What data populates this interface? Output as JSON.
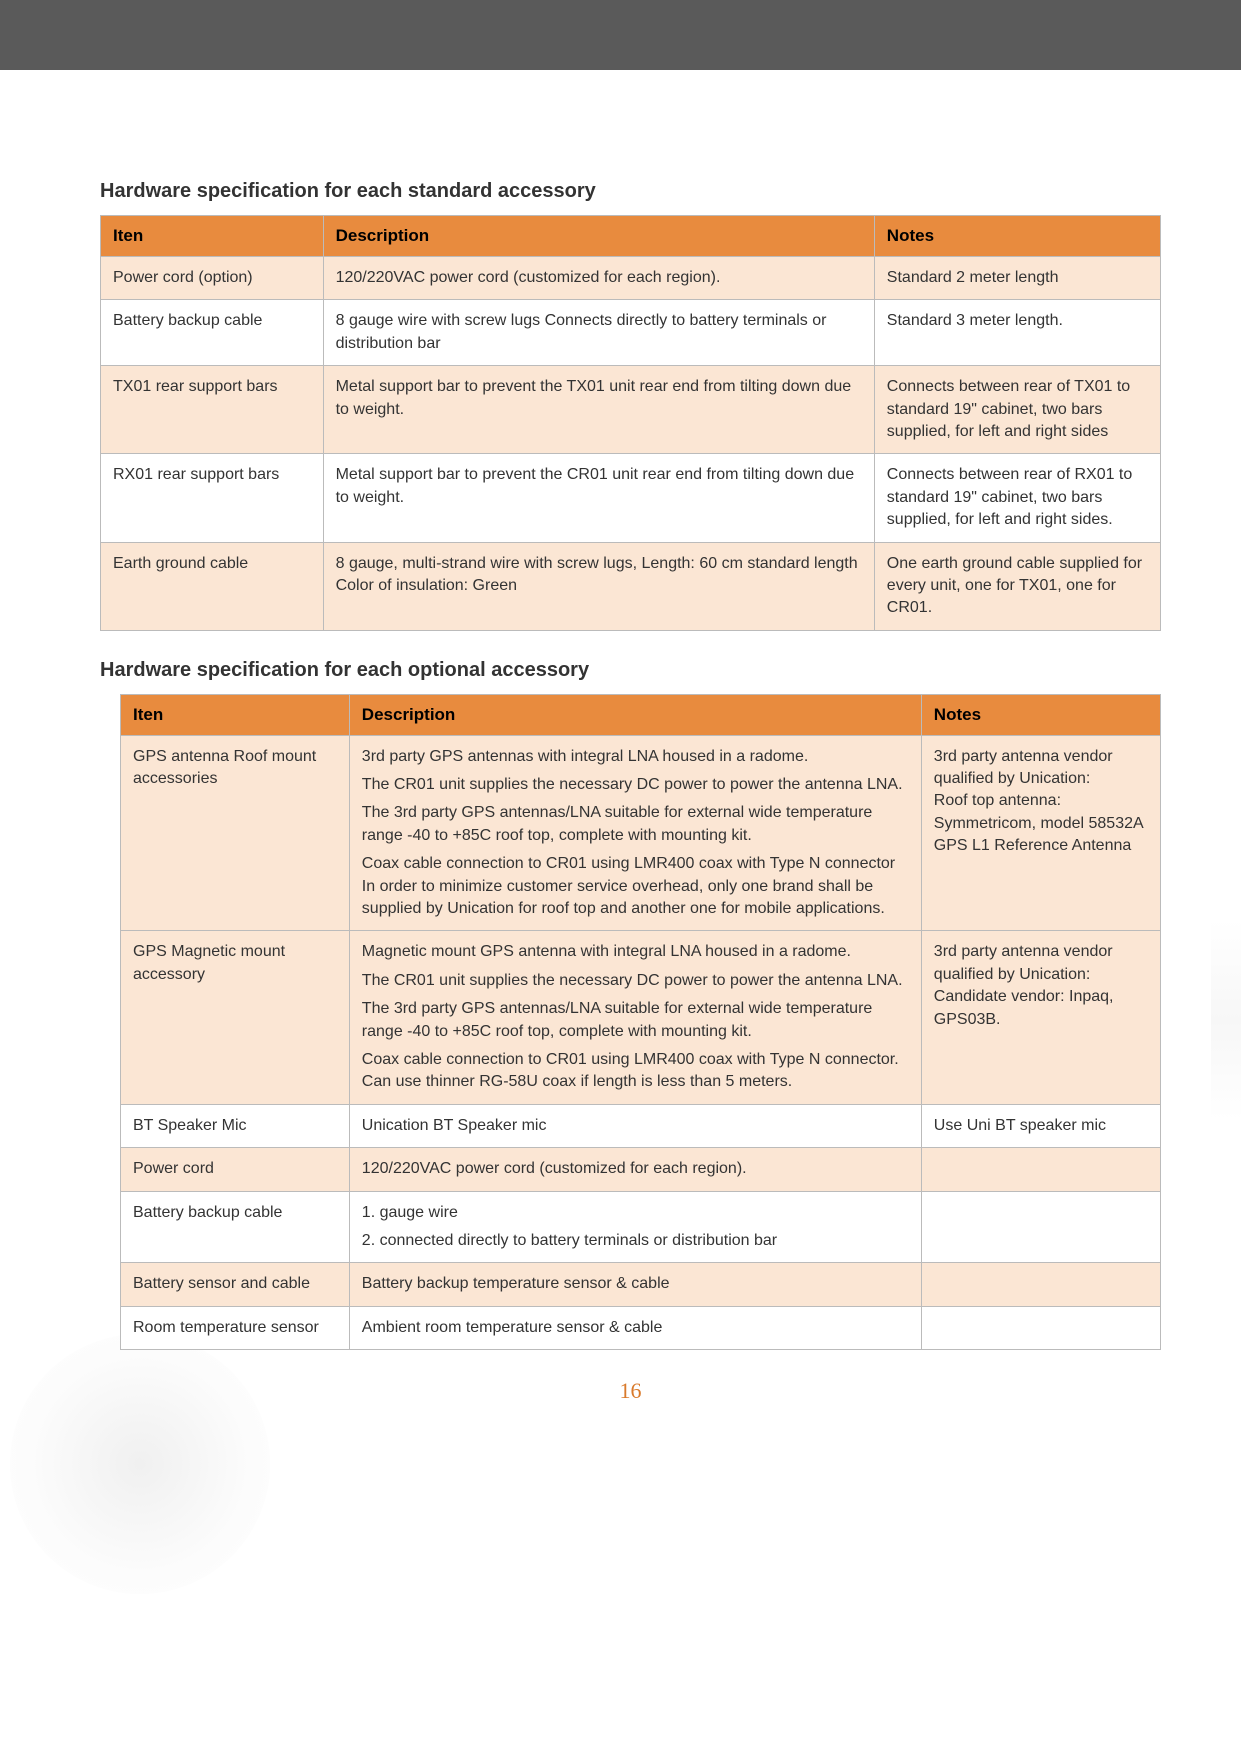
{
  "page_number": "16",
  "section1": {
    "title": "Hardware specification for each standard accessory",
    "headers": {
      "iten": "Iten",
      "description": "Description",
      "notes": "Notes"
    },
    "rows": [
      {
        "iten": "Power cord (option)",
        "desc": "120/220VAC power cord (customized for each region).",
        "notes": "Standard 2 meter length"
      },
      {
        "iten": "Battery backup cable",
        "desc": "8 gauge wire with screw lugs Connects directly to battery terminals or distribution bar",
        "notes": "Standard 3 meter length."
      },
      {
        "iten": "TX01 rear support bars",
        "desc": "Metal support bar to prevent the TX01 unit rear end from tilting down due to weight.",
        "notes": "Connects between rear of TX01 to standard 19\" cabinet, two bars supplied, for left and right sides"
      },
      {
        "iten": "RX01 rear support bars",
        "desc": "Metal support bar to prevent the CR01 unit rear end from tilting down due to weight.",
        "notes": "Connects between rear of RX01 to standard 19\" cabinet, two bars supplied, for left and right sides."
      },
      {
        "iten": "Earth ground cable",
        "desc": "8 gauge, multi-strand wire with screw lugs, Length: 60 cm standard length Color of insulation: Green",
        "notes": "One earth ground cable supplied for every unit, one for TX01, one for CR01."
      }
    ]
  },
  "section2": {
    "title": "Hardware specification for each optional accessory",
    "headers": {
      "iten": "Iten",
      "description": "Description",
      "notes": "Notes"
    },
    "rows": [
      {
        "iten": "GPS antenna Roof mount accessories",
        "desc_p1": "3rd party GPS antennas with integral LNA housed in a radome.",
        "desc_p2": "The CR01 unit supplies the necessary DC power to power the antenna LNA.",
        "desc_p3": "The 3rd party GPS antennas/LNA suitable for external wide temperature range -40 to +85C roof top, complete with mounting kit.",
        "desc_p4": "Coax cable connection to CR01 using LMR400 coax with Type N connector In order to minimize customer service overhead, only one brand shall be supplied by Unication for roof top and another one for mobile applications.",
        "notes": "3rd party antenna vendor qualified by Unication:\nRoof top antenna: Symmetricom, model 58532A GPS L1 Reference Antenna"
      },
      {
        "iten": "GPS Magnetic mount accessory",
        "desc_p1": "Magnetic mount GPS antenna with integral LNA housed in a radome.",
        "desc_p2": "The CR01 unit supplies the necessary DC power to power the antenna LNA.",
        "desc_p3": "The 3rd party GPS antennas/LNA suitable for external wide temperature range -40 to +85C roof top, complete with mounting kit.",
        "desc_p4": "Coax cable connection to CR01 using LMR400 coax with Type N connector. Can use thinner RG-58U coax if length is less than 5 meters.",
        "notes": "3rd party antenna vendor qualified by Unication:\nCandidate vendor: Inpaq, GPS03B."
      },
      {
        "iten": "BT Speaker Mic",
        "desc": "Unication BT Speaker mic",
        "notes": "Use Uni BT speaker mic"
      },
      {
        "iten": "Power cord",
        "desc": "120/220VAC power cord (customized for each region).",
        "notes": ""
      },
      {
        "iten": "Battery backup cable",
        "desc_p1": "1. gauge wire",
        "desc_p2": "2. connected directly to battery terminals or distribution bar",
        "notes": ""
      },
      {
        "iten": "Battery sensor and cable",
        "desc": "Battery backup temperature sensor & cable",
        "notes": ""
      },
      {
        "iten": "Room temperature sensor",
        "desc": "Ambient room temperature sensor & cable",
        "notes": ""
      }
    ]
  }
}
